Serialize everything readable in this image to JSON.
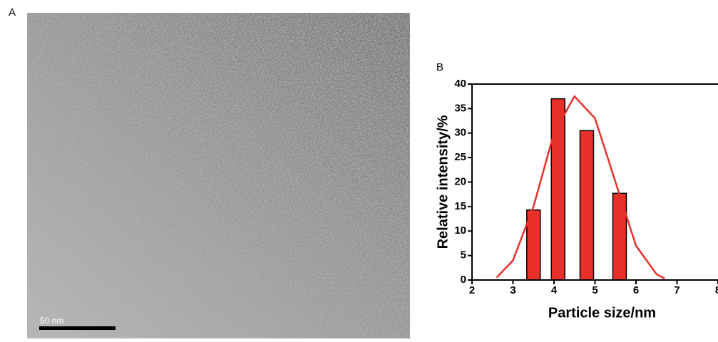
{
  "panel_a": {
    "label": "A",
    "scale_bar": "50 nm"
  },
  "chart_data": {
    "type": "bar",
    "panel_label": "B",
    "x_label": "Particle size/nm",
    "y_label": "Relative intensity/%",
    "x": [
      3.5,
      4.1,
      4.8,
      5.6
    ],
    "values": [
      14.3,
      37,
      30.5,
      17.7
    ],
    "bar_width": 0.33,
    "color": "#e8302a",
    "fit": {
      "color": "#e8302a",
      "x": [
        2.6,
        3.0,
        3.5,
        4.0,
        4.5,
        5.0,
        5.5,
        6.0,
        6.5,
        6.7
      ],
      "values": [
        0.5,
        4,
        15,
        30,
        37.5,
        33,
        20,
        7,
        1.2,
        0.3
      ]
    },
    "xlim": [
      2,
      8
    ],
    "xticks": [
      2,
      3,
      4,
      5,
      6,
      7,
      8
    ],
    "ylim": [
      0,
      40
    ],
    "yticks": [
      0,
      5,
      10,
      15,
      20,
      25,
      30,
      35,
      40
    ]
  }
}
